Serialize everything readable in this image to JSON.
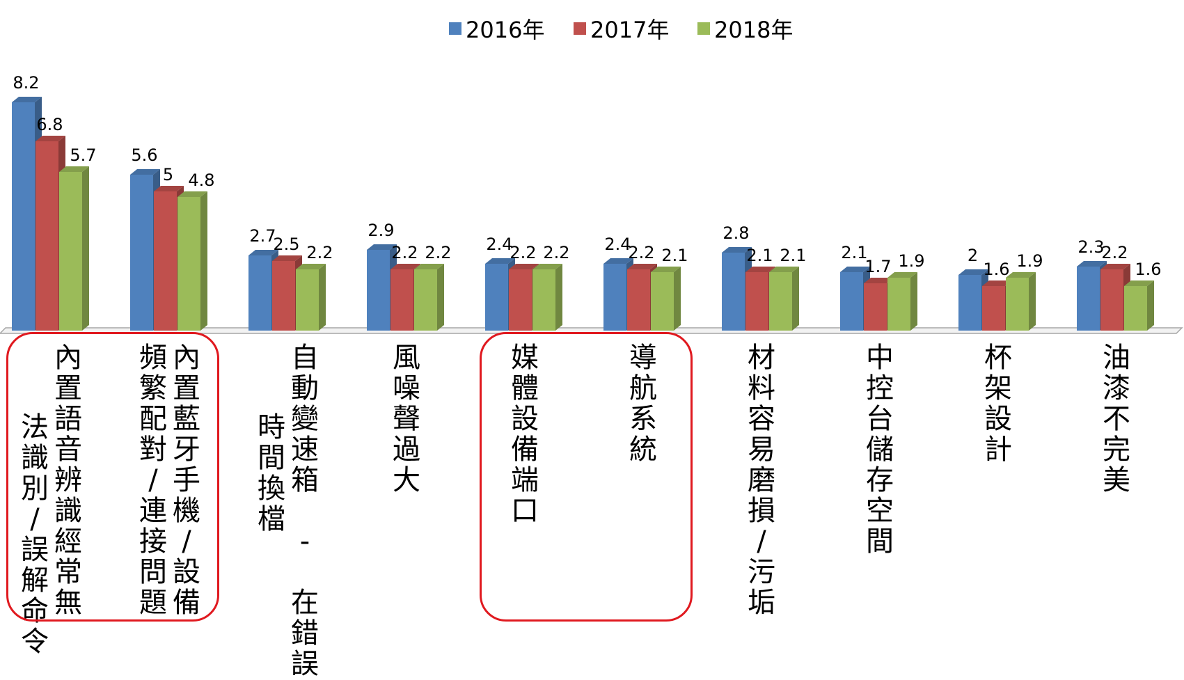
{
  "chart_data": {
    "type": "bar",
    "title": "",
    "xlabel": "",
    "ylabel": "",
    "ylim": [
      0,
      9
    ],
    "grid": false,
    "legend_position": "top-center",
    "categories": [
      [
        "內置語音辨識經常無",
        "法識別/誤解命令"
      ],
      [
        "內置藍牙手機/設備",
        "頻繁配對/連接問題"
      ],
      [
        "自動變速箱 - 在錯誤",
        "時間換檔"
      ],
      [
        "風噪聲過大"
      ],
      [
        "媒體設備端口"
      ],
      [
        "導航系統"
      ],
      [
        "材料容易磨損/污垢"
      ],
      [
        "中控台儲存空間"
      ],
      [
        "杯架設計"
      ],
      [
        "油漆不完美"
      ]
    ],
    "series": [
      {
        "name": "2016年",
        "color": "#4f81bd",
        "values": [
          8.2,
          5.6,
          2.7,
          2.9,
          2.4,
          2.4,
          2.8,
          2.1,
          2,
          2.3
        ]
      },
      {
        "name": "2017年",
        "color": "#c0504d",
        "values": [
          6.8,
          5,
          2.5,
          2.2,
          2.2,
          2.2,
          2.1,
          1.7,
          1.6,
          2.2
        ]
      },
      {
        "name": "2018年",
        "color": "#9bbb59",
        "values": [
          5.7,
          4.8,
          2.2,
          2.2,
          2.2,
          2.1,
          2.1,
          1.9,
          1.9,
          1.6
        ]
      }
    ],
    "highlighted_categories": [
      0,
      1,
      4,
      5
    ],
    "highlight_color": "#e0191f"
  }
}
